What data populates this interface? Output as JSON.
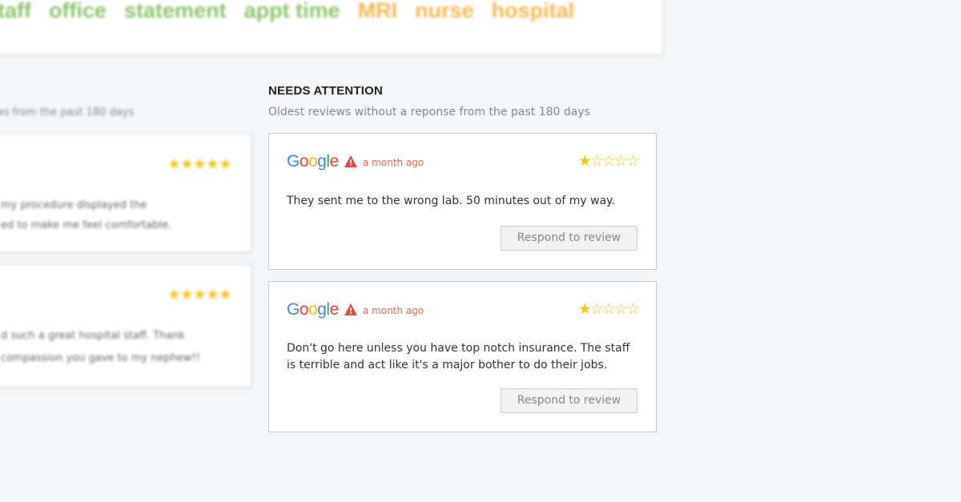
{
  "keywords": [
    {
      "label": "staff",
      "color": "#8cc46a"
    },
    {
      "label": "office",
      "color": "#8cc46a"
    },
    {
      "label": "statement",
      "color": "#8cc46a"
    },
    {
      "label": "appt time",
      "color": "#8cc46a"
    },
    {
      "label": "MRI",
      "color": "#f7b84b"
    },
    {
      "label": "nurse",
      "color": "#f7b84b"
    },
    {
      "label": "hospital",
      "color": "#f7b84b"
    }
  ],
  "left": {
    "subtitle": "ws from the past 180 days",
    "reviews": [
      {
        "rating": 5,
        "lines": [
          "my procedure displayed the",
          "ed to make me feel comfortable."
        ]
      },
      {
        "rating": 5,
        "lines": [
          "d such a great hospital staff.  Thank",
          "compassion you gave to my nephew!!"
        ]
      }
    ]
  },
  "needs_attention": {
    "title": "NEEDS ATTENTION",
    "subtitle": "Oldest reviews without a reponse from the past 180 days",
    "reviews": [
      {
        "source": "Google",
        "time": "a month ago",
        "rating": 1,
        "text": "They sent me to the wrong lab.  50 minutes out of my way.",
        "button": "Respond to review"
      },
      {
        "source": "Google",
        "time": "a month ago",
        "rating": 1,
        "text": "Don't go here unless you have top notch insurance. The staff is terrible and act like it's a major bother to do their jobs.",
        "button": "Respond to review"
      }
    ]
  }
}
